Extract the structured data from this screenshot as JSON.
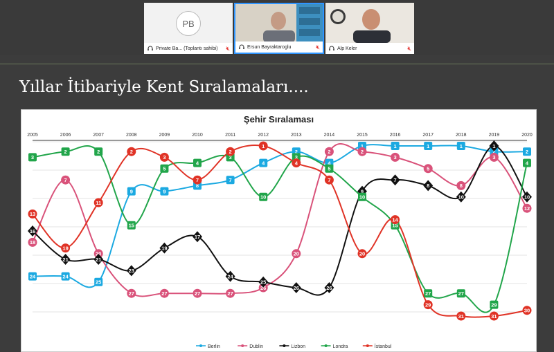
{
  "meeting": {
    "participants": [
      {
        "initials": "PB",
        "name": "Private Ba... (Toplantı sahibi)",
        "muted": true,
        "active": false
      },
      {
        "initials": "",
        "name": "Ersun Bayraktaroglu",
        "muted": true,
        "active": true
      },
      {
        "initials": "",
        "name": "Alp Keler",
        "muted": true,
        "active": false
      }
    ]
  },
  "slide": {
    "title": "Yıllar İtibariyle Kent Sıralamaları...."
  },
  "chart_data": {
    "type": "line",
    "title": "Şehir Sıralaması",
    "x": [
      "2005",
      "2006",
      "2007",
      "2008",
      "2009",
      "2010",
      "2011",
      "2012",
      "2013",
      "2014",
      "2015",
      "2016",
      "2017",
      "2018",
      "2019",
      "2020"
    ],
    "y_reversed": true,
    "ylim": [
      1,
      35
    ],
    "grid": true,
    "legend": "bottom",
    "series": [
      {
        "name": "Berlin",
        "color": "#1ba9e1",
        "marker": "square",
        "values": [
          24,
          24,
          25,
          9,
          9,
          8,
          7,
          4,
          2,
          4,
          1,
          1,
          1,
          1,
          2,
          2
        ]
      },
      {
        "name": "Dublin",
        "color": "#d9527a",
        "marker": "circle",
        "values": [
          18,
          7,
          20,
          27,
          27,
          27,
          27,
          26,
          20,
          2,
          2,
          3,
          5,
          8,
          3,
          12
        ]
      },
      {
        "name": "Lizbon",
        "color": "#111111",
        "marker": "diamond",
        "values": [
          16,
          21,
          21,
          23,
          19,
          17,
          24,
          25,
          26,
          26,
          9,
          7,
          8,
          10,
          1,
          10
        ]
      },
      {
        "name": "Londra",
        "color": "#21a54a",
        "marker": "square",
        "values": [
          3,
          2,
          2,
          15,
          5,
          4,
          3,
          10,
          3,
          5,
          10,
          15,
          27,
          27,
          29,
          4
        ]
      },
      {
        "name": "İstanbul",
        "color": "#e03326",
        "marker": "circle",
        "values": [
          13,
          19,
          11,
          2,
          3,
          7,
          2,
          1,
          4,
          7,
          20,
          14,
          29,
          31,
          31,
          30
        ]
      }
    ]
  }
}
